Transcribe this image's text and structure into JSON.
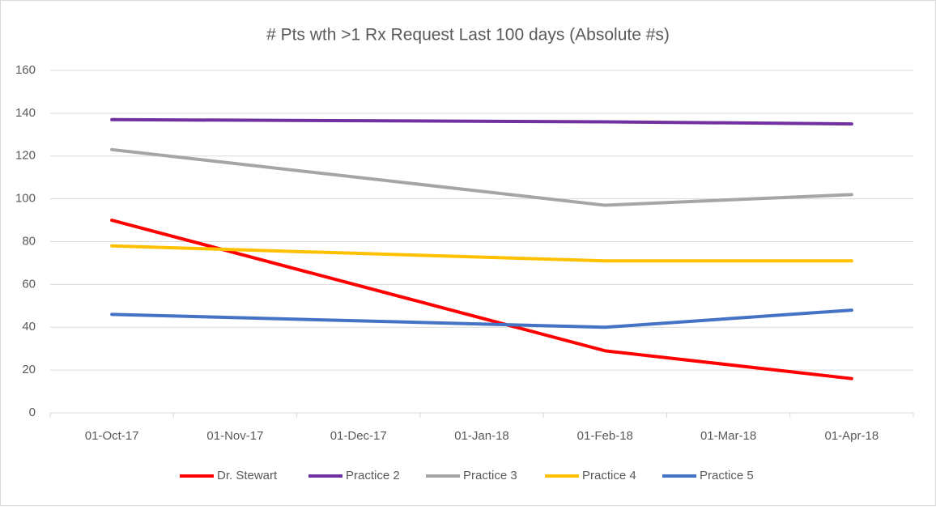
{
  "chart_data": {
    "type": "line",
    "title": "# Pts wth >1 Rx Request Last 100 days (Absolute #s)",
    "x": [
      "2017-10-01",
      "2018-02-01",
      "2018-04-01"
    ],
    "xlim": [
      "2017-10-01",
      "2018-04-01"
    ],
    "xticks": [
      {
        "value": "2017-10-01",
        "label": "01-Oct-17"
      },
      {
        "value": "2017-11-01",
        "label": "01-Nov-17"
      },
      {
        "value": "2017-12-01",
        "label": "01-Dec-17"
      },
      {
        "value": "2018-01-01",
        "label": "01-Jan-18"
      },
      {
        "value": "2018-02-01",
        "label": "01-Feb-18"
      },
      {
        "value": "2018-03-01",
        "label": "01-Mar-18"
      },
      {
        "value": "2018-04-01",
        "label": "01-Apr-18"
      }
    ],
    "ylim": [
      0,
      160
    ],
    "yticks": [
      0,
      20,
      40,
      60,
      80,
      100,
      120,
      140,
      160
    ],
    "grid": true,
    "legend": "bottom",
    "series": [
      {
        "name": "Dr. Stewart",
        "color": "#ff0000",
        "values": [
          90,
          29,
          16
        ]
      },
      {
        "name": "Practice 2",
        "color": "#7030a0",
        "values": [
          137,
          136,
          135
        ]
      },
      {
        "name": "Practice 3",
        "color": "#a5a5a5",
        "values": [
          123,
          97,
          102
        ]
      },
      {
        "name": "Practice 4",
        "color": "#ffc000",
        "values": [
          78,
          71,
          71
        ]
      },
      {
        "name": "Practice 5",
        "color": "#4472c4",
        "values": [
          46,
          40,
          48
        ]
      }
    ]
  }
}
